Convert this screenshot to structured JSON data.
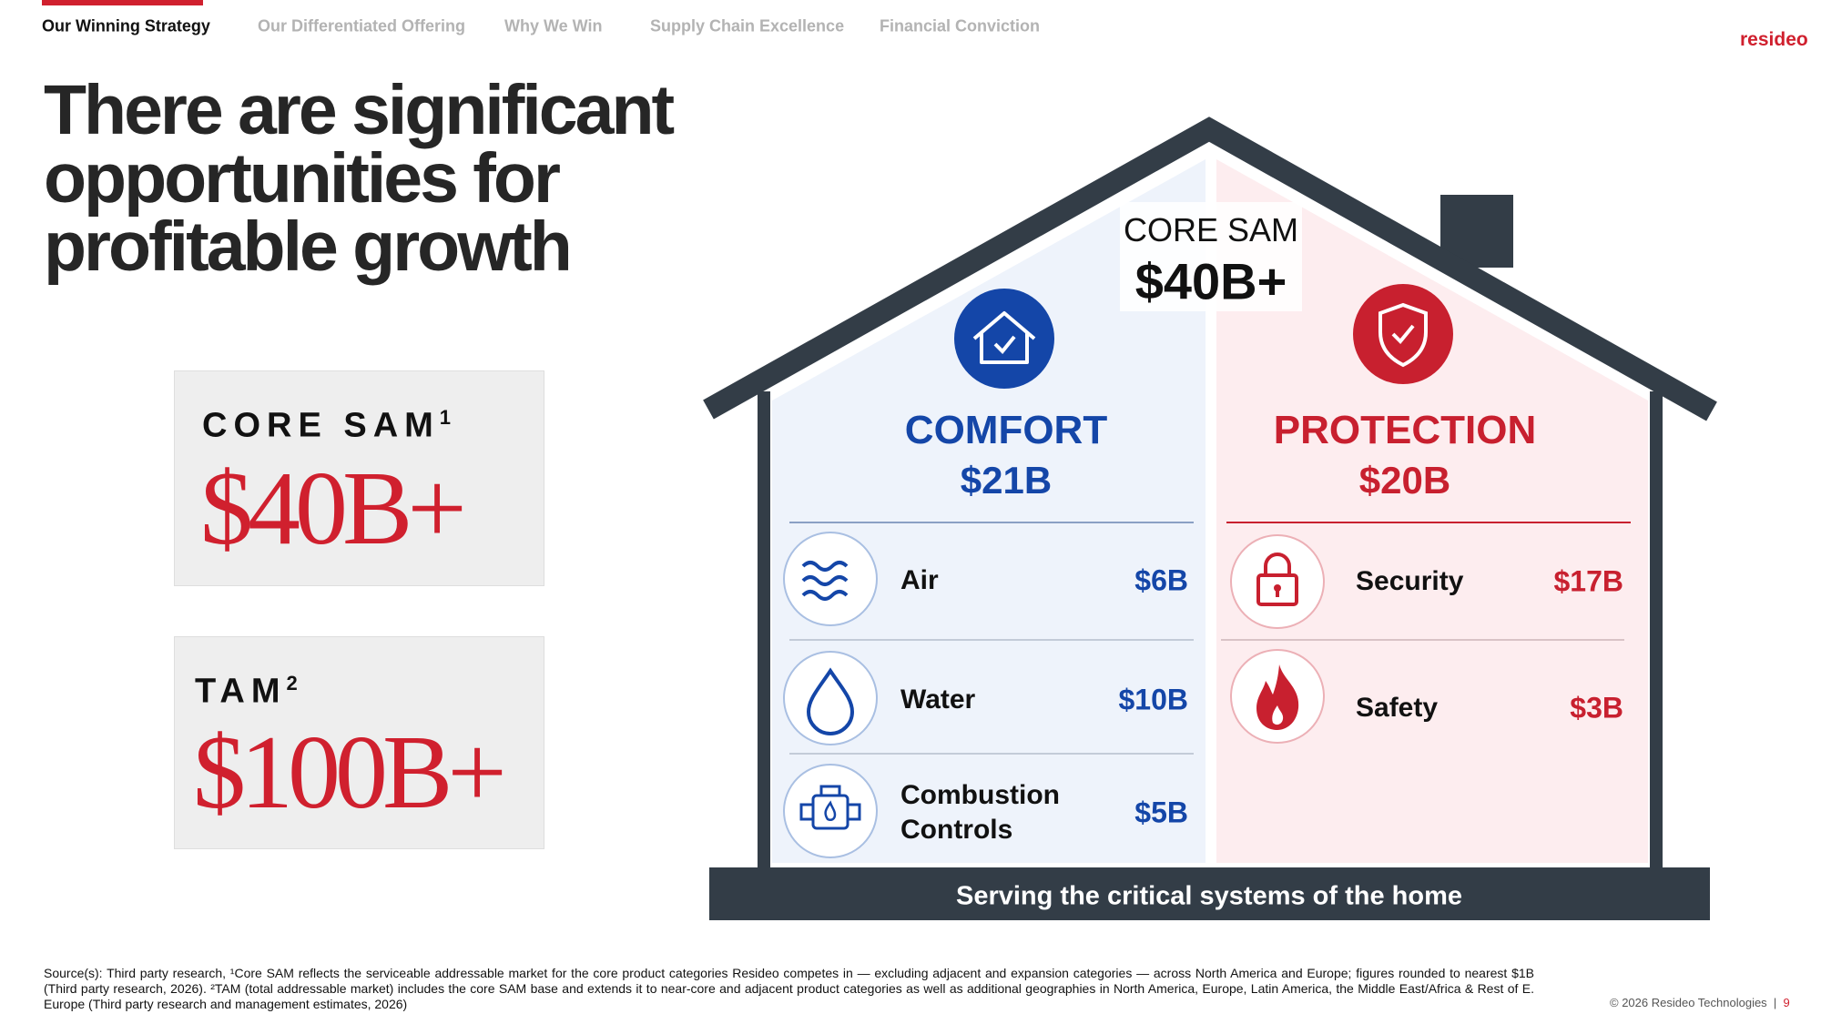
{
  "nav": {
    "tabs": [
      "Our Winning Strategy",
      "Our Differentiated Offering",
      "Why We Win",
      "Supply Chain Excellence",
      "Financial Conviction"
    ],
    "active": 0
  },
  "brand": "resideo",
  "title": [
    "There are significant",
    "opportunities for",
    "profitable growth"
  ],
  "metrics": [
    {
      "label": "CORE SAM",
      "note": "1",
      "value": "$40B+"
    },
    {
      "label": "TAM",
      "note": "2",
      "value": "$100B+"
    }
  ],
  "house": {
    "header_label": "CORE SAM",
    "header_value": "$40B+",
    "segments": [
      {
        "name": "COMFORT",
        "value": "$21B",
        "items": [
          {
            "label": "Air",
            "value": "$6B"
          },
          {
            "label": "Water",
            "value": "$10B"
          },
          {
            "label": "Combustion Controls",
            "value": "$5B"
          }
        ]
      },
      {
        "name": "PROTECTION",
        "value": "$20B",
        "items": [
          {
            "label": "Security",
            "value": "$17B"
          },
          {
            "label": "Safety",
            "value": "$3B"
          }
        ]
      }
    ],
    "footer": "Serving the critical systems of the home"
  },
  "footnote": "Source(s): Third party research, ¹Core SAM reflects the serviceable addressable market for the core product categories Resideo competes in — excluding adjacent and expansion categories — across North America and Europe; figures rounded to nearest $1B (Third party research, 2026). ²TAM (total addressable market) includes the core SAM base and extends it to near-core and adjacent product categories as well as additional geographies in North America, Europe, Latin America, the Middle East/Africa & Rest of E. Europe (Third party research and management estimates, 2026)",
  "copyright": "© 2026 Resideo Technologies",
  "page_number": "9"
}
